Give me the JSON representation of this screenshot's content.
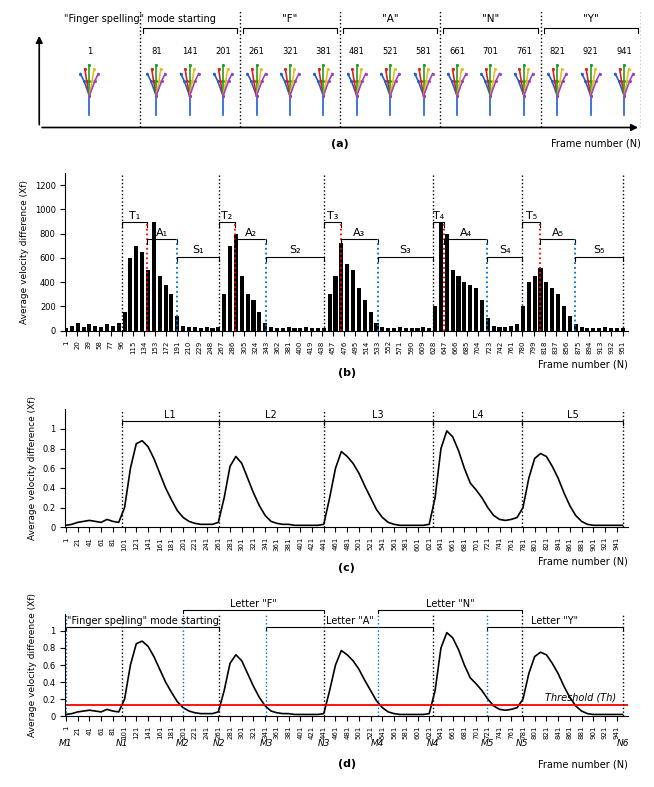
{
  "panel_a": {
    "caption": "(a)",
    "x_label": "Frame number (N)",
    "lead_frame": 1,
    "groups": [
      {
        "label": "\"Finger spelling\" mode starting",
        "frames": [
          81,
          141,
          201
        ]
      },
      {
        "label": "\"F\"",
        "frames": [
          261,
          321,
          381
        ]
      },
      {
        "label": "\"A\"",
        "frames": [
          481,
          521,
          581
        ]
      },
      {
        "label": "\"N\"",
        "frames": [
          661,
          701,
          761
        ]
      },
      {
        "label": "\"Y\"",
        "frames": [
          821,
          921,
          941
        ]
      }
    ]
  },
  "chart_data": [
    {
      "type": "bar",
      "caption": "(b)",
      "y_label": "Average velocity difference (Xf)",
      "x_label": "Frame number (N)",
      "color": "#000000",
      "x": [
        1,
        11,
        21,
        31,
        41,
        51,
        61,
        71,
        81,
        91,
        101,
        111,
        121,
        131,
        141,
        151,
        161,
        171,
        181,
        191,
        201,
        211,
        221,
        231,
        241,
        251,
        261,
        271,
        281,
        291,
        301,
        311,
        321,
        331,
        341,
        351,
        361,
        371,
        381,
        391,
        401,
        411,
        421,
        431,
        441,
        451,
        461,
        471,
        481,
        491,
        501,
        511,
        521,
        531,
        541,
        551,
        561,
        571,
        581,
        591,
        601,
        611,
        621,
        631,
        641,
        651,
        661,
        671,
        681,
        691,
        701,
        711,
        721,
        731,
        741,
        751,
        761,
        771,
        781,
        791,
        801,
        811,
        821,
        831,
        841,
        851,
        861,
        871,
        881,
        891,
        901,
        911,
        921,
        931,
        941,
        951
      ],
      "values": [
        20,
        40,
        60,
        30,
        50,
        40,
        30,
        50,
        40,
        60,
        150,
        600,
        700,
        650,
        500,
        900,
        450,
        380,
        300,
        120,
        40,
        30,
        30,
        20,
        30,
        20,
        30,
        300,
        700,
        800,
        450,
        300,
        250,
        150,
        60,
        30,
        20,
        20,
        30,
        20,
        20,
        30,
        20,
        20,
        20,
        300,
        450,
        720,
        550,
        500,
        350,
        250,
        150,
        60,
        30,
        20,
        20,
        30,
        20,
        20,
        20,
        30,
        20,
        200,
        900,
        800,
        500,
        450,
        400,
        380,
        350,
        250,
        100,
        40,
        30,
        30,
        40,
        50,
        200,
        400,
        450,
        520,
        400,
        350,
        300,
        200,
        120,
        50,
        30,
        20,
        20,
        20,
        30,
        20,
        20,
        20
      ],
      "xlim": [
        0,
        960
      ],
      "ylim": [
        0,
        1300
      ],
      "xticks": [
        1,
        20,
        39,
        58,
        77,
        96,
        115,
        134,
        153,
        172,
        191,
        210,
        229,
        248,
        267,
        286,
        305,
        324,
        343,
        362,
        381,
        400,
        419,
        438,
        457,
        476,
        495,
        514,
        533,
        552,
        571,
        590,
        609,
        628,
        647,
        666,
        685,
        704,
        723,
        742,
        761,
        780,
        799,
        818,
        837,
        856,
        875,
        894,
        913,
        932,
        951
      ],
      "yticks": [
        0,
        200,
        400,
        600,
        800,
        1000,
        1200
      ],
      "annotations": [
        {
          "text": "T₁",
          "start": 96,
          "end": 140
        },
        {
          "text": "A₁",
          "start": 140,
          "end": 190
        },
        {
          "text": "S₁",
          "start": 190,
          "end": 262
        },
        {
          "text": "T₂",
          "start": 262,
          "end": 290
        },
        {
          "text": "A₂",
          "start": 290,
          "end": 343
        },
        {
          "text": "S₂",
          "start": 343,
          "end": 441
        },
        {
          "text": "T₃",
          "start": 441,
          "end": 470
        },
        {
          "text": "A₃",
          "start": 470,
          "end": 533
        },
        {
          "text": "S₃",
          "start": 533,
          "end": 627
        },
        {
          "text": "T₄",
          "start": 627,
          "end": 647
        },
        {
          "text": "A₄",
          "start": 647,
          "end": 720
        },
        {
          "text": "S₄",
          "start": 720,
          "end": 780
        },
        {
          "text": "T₅",
          "start": 780,
          "end": 810
        },
        {
          "text": "A₅",
          "start": 810,
          "end": 870
        },
        {
          "text": "S₅",
          "start": 870,
          "end": 951
        }
      ]
    },
    {
      "type": "line",
      "caption": "(c)",
      "y_label": "Average velocity difference (Xf)",
      "x_label": "Frame number (N)",
      "color": "#000000",
      "x": [
        1,
        11,
        21,
        31,
        41,
        51,
        61,
        71,
        81,
        91,
        101,
        111,
        121,
        131,
        141,
        151,
        161,
        171,
        181,
        191,
        201,
        211,
        221,
        231,
        241,
        251,
        261,
        271,
        281,
        291,
        301,
        311,
        321,
        331,
        341,
        351,
        361,
        371,
        381,
        391,
        401,
        411,
        421,
        431,
        441,
        451,
        461,
        471,
        481,
        491,
        501,
        511,
        521,
        531,
        541,
        551,
        561,
        571,
        581,
        591,
        601,
        611,
        621,
        631,
        641,
        651,
        661,
        671,
        681,
        691,
        701,
        711,
        721,
        731,
        741,
        751,
        761,
        771,
        781,
        791,
        801,
        811,
        821,
        831,
        841,
        851,
        861,
        871,
        881,
        891,
        901,
        911,
        921,
        931,
        941,
        951
      ],
      "values": [
        0.02,
        0.03,
        0.05,
        0.06,
        0.07,
        0.06,
        0.05,
        0.08,
        0.06,
        0.05,
        0.2,
        0.6,
        0.85,
        0.88,
        0.82,
        0.7,
        0.55,
        0.4,
        0.28,
        0.17,
        0.1,
        0.06,
        0.04,
        0.03,
        0.03,
        0.03,
        0.05,
        0.3,
        0.62,
        0.72,
        0.65,
        0.5,
        0.35,
        0.22,
        0.12,
        0.06,
        0.04,
        0.03,
        0.03,
        0.02,
        0.02,
        0.02,
        0.02,
        0.02,
        0.03,
        0.3,
        0.6,
        0.77,
        0.72,
        0.65,
        0.55,
        0.42,
        0.3,
        0.18,
        0.1,
        0.05,
        0.03,
        0.02,
        0.02,
        0.02,
        0.02,
        0.02,
        0.03,
        0.3,
        0.8,
        0.98,
        0.92,
        0.78,
        0.6,
        0.45,
        0.38,
        0.3,
        0.2,
        0.12,
        0.08,
        0.07,
        0.08,
        0.1,
        0.2,
        0.5,
        0.7,
        0.75,
        0.72,
        0.62,
        0.5,
        0.35,
        0.22,
        0.12,
        0.06,
        0.03,
        0.02,
        0.02,
        0.02,
        0.02,
        0.02,
        0.02
      ],
      "xlim": [
        0,
        960
      ],
      "ylim": [
        0,
        1.2
      ],
      "xticks": [
        1,
        21,
        41,
        61,
        81,
        101,
        121,
        141,
        161,
        181,
        201,
        221,
        241,
        261,
        281,
        301,
        321,
        341,
        361,
        381,
        401,
        421,
        441,
        461,
        481,
        501,
        521,
        541,
        561,
        581,
        601,
        621,
        641,
        661,
        681,
        701,
        721,
        741,
        761,
        781,
        801,
        821,
        841,
        861,
        881,
        901,
        921,
        941
      ],
      "yticks": [
        0,
        0.2,
        0.4,
        0.6,
        0.8,
        1
      ],
      "annotations": [
        {
          "text": "L1",
          "start": 96,
          "end": 262
        },
        {
          "text": "L2",
          "start": 262,
          "end": 441
        },
        {
          "text": "L3",
          "start": 441,
          "end": 627
        },
        {
          "text": "L4",
          "start": 627,
          "end": 780
        },
        {
          "text": "L5",
          "start": 780,
          "end": 951
        }
      ]
    },
    {
      "type": "line",
      "caption": "(d)",
      "y_label": "Average velocity difference (Xf)",
      "x_label": "Frame number (N)",
      "color": "#000000",
      "x": [
        1,
        11,
        21,
        31,
        41,
        51,
        61,
        71,
        81,
        91,
        101,
        111,
        121,
        131,
        141,
        151,
        161,
        171,
        181,
        191,
        201,
        211,
        221,
        231,
        241,
        251,
        261,
        271,
        281,
        291,
        301,
        311,
        321,
        331,
        341,
        351,
        361,
        371,
        381,
        391,
        401,
        411,
        421,
        431,
        441,
        451,
        461,
        471,
        481,
        491,
        501,
        511,
        521,
        531,
        541,
        551,
        561,
        571,
        581,
        591,
        601,
        611,
        621,
        631,
        641,
        651,
        661,
        671,
        681,
        691,
        701,
        711,
        721,
        731,
        741,
        751,
        761,
        771,
        781,
        791,
        801,
        811,
        821,
        831,
        841,
        851,
        861,
        871,
        881,
        891,
        901,
        911,
        921,
        931,
        941,
        951
      ],
      "values": [
        0.02,
        0.03,
        0.05,
        0.06,
        0.07,
        0.06,
        0.05,
        0.08,
        0.06,
        0.05,
        0.2,
        0.6,
        0.85,
        0.88,
        0.82,
        0.7,
        0.55,
        0.4,
        0.28,
        0.17,
        0.1,
        0.06,
        0.04,
        0.03,
        0.03,
        0.03,
        0.05,
        0.3,
        0.62,
        0.72,
        0.65,
        0.5,
        0.35,
        0.22,
        0.12,
        0.06,
        0.04,
        0.03,
        0.03,
        0.02,
        0.02,
        0.02,
        0.02,
        0.02,
        0.03,
        0.3,
        0.6,
        0.77,
        0.72,
        0.65,
        0.55,
        0.42,
        0.3,
        0.18,
        0.1,
        0.05,
        0.03,
        0.02,
        0.02,
        0.02,
        0.02,
        0.02,
        0.03,
        0.3,
        0.8,
        0.98,
        0.92,
        0.78,
        0.6,
        0.45,
        0.38,
        0.3,
        0.2,
        0.12,
        0.08,
        0.07,
        0.08,
        0.1,
        0.2,
        0.5,
        0.7,
        0.75,
        0.72,
        0.62,
        0.5,
        0.35,
        0.22,
        0.12,
        0.06,
        0.03,
        0.02,
        0.02,
        0.02,
        0.02,
        0.02,
        0.02
      ],
      "xlim": [
        0,
        960
      ],
      "ylim": [
        0,
        1.2
      ],
      "xticks": [
        1,
        21,
        41,
        61,
        81,
        101,
        121,
        141,
        161,
        181,
        201,
        221,
        241,
        261,
        281,
        301,
        321,
        341,
        361,
        381,
        401,
        421,
        441,
        461,
        481,
        501,
        521,
        541,
        561,
        581,
        601,
        621,
        641,
        661,
        681,
        701,
        721,
        741,
        761,
        781,
        801,
        821,
        841,
        861,
        881,
        901,
        921,
        941
      ],
      "yticks": [
        0,
        0.2,
        0.4,
        0.6,
        0.8,
        1
      ],
      "threshold": {
        "value": 0.13,
        "label": "Threshold (Th)",
        "color": "#ff0000"
      },
      "annotations": [
        {
          "text": "\"Finger spelling\" mode starting",
          "start": 1,
          "end": 262
        },
        {
          "text": "Letter \"F\"",
          "start": 200,
          "end": 441
        },
        {
          "text": "Letter \"A\"",
          "start": 343,
          "end": 627
        },
        {
          "text": "Letter \"N\"",
          "start": 533,
          "end": 780
        },
        {
          "text": "Letter \"Y\"",
          "start": 720,
          "end": 951
        }
      ],
      "points": [
        {
          "text": "M1",
          "x": 1
        },
        {
          "text": "N1",
          "x": 96
        },
        {
          "text": "M2",
          "x": 200
        },
        {
          "text": "N2",
          "x": 262
        },
        {
          "text": "M3",
          "x": 343
        },
        {
          "text": "N3",
          "x": 441
        },
        {
          "text": "M4",
          "x": 533
        },
        {
          "text": "N4",
          "x": 627
        },
        {
          "text": "M5",
          "x": 720
        },
        {
          "text": "N5",
          "x": 780
        },
        {
          "text": "N6",
          "x": 951
        }
      ]
    }
  ]
}
